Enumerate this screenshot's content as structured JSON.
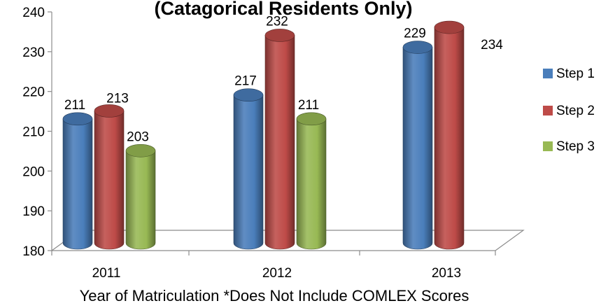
{
  "chart_data": {
    "type": "bar",
    "title": "(Catagorical Residents Only)",
    "xlabel": "Year of Matriculation   *Does Not Include COMLEX Scores",
    "ylabel": "",
    "categories": [
      "2011",
      "2012",
      "2013"
    ],
    "series": [
      {
        "name": "Step 1",
        "color": "#4a7ebb",
        "values": [
          211,
          217,
          229
        ]
      },
      {
        "name": "Step 2",
        "color": "#be4b48",
        "values": [
          213,
          232,
          234
        ]
      },
      {
        "name": "Step 3",
        "color": "#98b954",
        "values": [
          203,
          211,
          null
        ]
      }
    ],
    "ylim": [
      180,
      240
    ],
    "yticks": [
      180,
      190,
      200,
      210,
      220,
      230,
      240
    ],
    "legend_position": "right",
    "grid": false,
    "style": "3d-cylinder"
  }
}
